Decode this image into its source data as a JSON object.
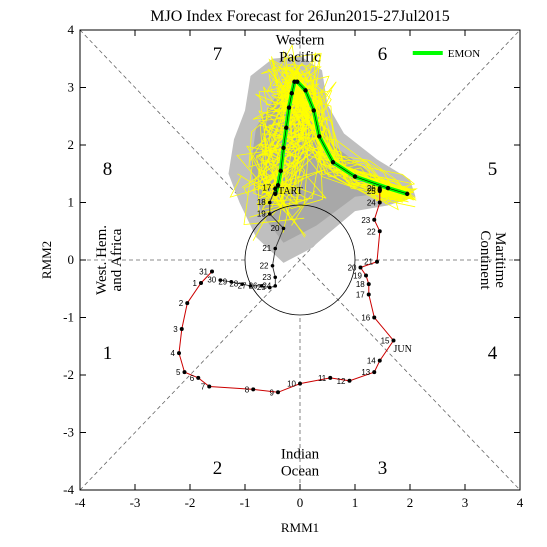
{
  "chart_data": {
    "type": "line",
    "title": "MJO Index Forecast for 26Jun2015-27Jul2015",
    "xlabel": "RMM1",
    "ylabel": "RMM2",
    "xlim": [
      -4,
      4
    ],
    "ylim": [
      -4,
      4
    ],
    "xticks": [
      "-4",
      "-3",
      "-2",
      "-1",
      "0",
      "1",
      "2",
      "3",
      "4"
    ],
    "yticks": [
      "-4",
      "-3",
      "-2",
      "-1",
      "0",
      "1",
      "2",
      "3",
      "4"
    ],
    "phases": [
      {
        "num": "1",
        "x": -3.5,
        "y": -1.6
      },
      {
        "num": "2",
        "x": -1.5,
        "y": -3.6
      },
      {
        "num": "3",
        "x": 1.5,
        "y": -3.6
      },
      {
        "num": "4",
        "x": 3.5,
        "y": -1.6
      },
      {
        "num": "5",
        "x": 3.5,
        "y": 1.6
      },
      {
        "num": "6",
        "x": 1.5,
        "y": 3.6
      },
      {
        "num": "7",
        "x": -1.5,
        "y": 3.6
      },
      {
        "num": "8",
        "x": -3.5,
        "y": 1.6
      }
    ],
    "regions": {
      "western_pacific": [
        "Western",
        "Pacific"
      ],
      "indian_ocean": [
        "Indian",
        "Ocean"
      ],
      "west_hem": [
        "West. Hem.",
        "and Africa"
      ],
      "maritime": [
        "Maritime",
        "Continent"
      ]
    },
    "legend": {
      "label": "EMON",
      "position": "top-right",
      "color": "#00ff00"
    },
    "colors": {
      "observed": "#cc0000",
      "ensemble": "#ffff00",
      "spread": "#bfbfbf",
      "guides": "#666666"
    },
    "month_labels": [
      {
        "text": "JUN",
        "x": 1.7,
        "y": -1.6
      },
      {
        "text": "START",
        "x": -0.5,
        "y": 1.15
      }
    ],
    "observed": [
      {
        "day": "31",
        "x": -1.6,
        "y": -0.2
      },
      {
        "day": "1",
        "x": -1.8,
        "y": -0.4
      },
      {
        "day": "2",
        "x": -2.05,
        "y": -0.75
      },
      {
        "day": "3",
        "x": -2.15,
        "y": -1.2
      },
      {
        "day": "4",
        "x": -2.2,
        "y": -1.62
      },
      {
        "day": "5",
        "x": -2.1,
        "y": -1.95
      },
      {
        "day": "6",
        "x": -1.85,
        "y": -2.05
      },
      {
        "day": "7",
        "x": -1.65,
        "y": -2.2
      },
      {
        "day": "8",
        "x": -0.85,
        "y": -2.25
      },
      {
        "day": "9",
        "x": -0.4,
        "y": -2.3
      },
      {
        "day": "10",
        "x": 0.0,
        "y": -2.15
      },
      {
        "day": "11",
        "x": 0.55,
        "y": -2.05
      },
      {
        "day": "12",
        "x": 0.9,
        "y": -2.1
      },
      {
        "day": "13",
        "x": 1.35,
        "y": -1.95
      },
      {
        "day": "14",
        "x": 1.45,
        "y": -1.75
      },
      {
        "day": "15",
        "x": 1.7,
        "y": -1.4
      },
      {
        "day": "16",
        "x": 1.35,
        "y": -1.0
      },
      {
        "day": "17",
        "x": 1.25,
        "y": -0.6
      },
      {
        "day": "18",
        "x": 1.25,
        "y": -0.42
      },
      {
        "day": "19",
        "x": 1.2,
        "y": -0.27
      },
      {
        "day": "20",
        "x": 1.1,
        "y": -0.13
      },
      {
        "day": "21",
        "x": 1.4,
        "y": -0.03
      },
      {
        "day": "22",
        "x": 1.45,
        "y": 0.5
      },
      {
        "day": "23",
        "x": 1.35,
        "y": 0.7
      },
      {
        "day": "24",
        "x": 1.45,
        "y": 1.0
      },
      {
        "day": "25",
        "x": 1.45,
        "y": 1.2
      },
      {
        "day": "26",
        "x": 1.45,
        "y": 1.25
      }
    ],
    "pre_period": [
      {
        "day": "20",
        "x": -0.3,
        "y": 0.55
      },
      {
        "day": "21",
        "x": -0.45,
        "y": 0.2
      },
      {
        "day": "22",
        "x": -0.5,
        "y": -0.1
      },
      {
        "day": "23",
        "x": -0.45,
        "y": -0.3
      },
      {
        "day": "24",
        "x": -0.45,
        "y": -0.45
      },
      {
        "day": "25",
        "x": -0.55,
        "y": -0.48
      },
      {
        "day": "26",
        "x": -0.7,
        "y": -0.45
      },
      {
        "day": "27",
        "x": -0.9,
        "y": -0.45
      },
      {
        "day": "28",
        "x": -1.05,
        "y": -0.42
      },
      {
        "day": "29",
        "x": -1.25,
        "y": -0.38
      },
      {
        "day": "30",
        "x": -1.45,
        "y": -0.35
      }
    ],
    "june_start": [
      {
        "day": "17",
        "x": -0.45,
        "y": 1.25
      },
      {
        "day": "18",
        "x": -0.55,
        "y": 1.0
      },
      {
        "day": "19",
        "x": -0.55,
        "y": 0.8
      }
    ],
    "ensemble_mean": [
      [
        1.45,
        1.22
      ],
      [
        1.95,
        1.15
      ],
      [
        1.6,
        1.25
      ],
      [
        1.0,
        1.45
      ],
      [
        0.6,
        1.7
      ],
      [
        0.35,
        2.15
      ],
      [
        0.25,
        2.6
      ],
      [
        0.1,
        2.95
      ],
      [
        -0.05,
        3.1
      ],
      [
        -0.1,
        3.1
      ],
      [
        -0.15,
        2.9
      ],
      [
        -0.2,
        2.65
      ],
      [
        -0.25,
        2.3
      ],
      [
        -0.3,
        1.95
      ],
      [
        -0.35,
        1.55
      ],
      [
        -0.4,
        1.3
      ],
      [
        -0.45,
        1.15
      ]
    ],
    "spread": [
      [
        -1.0,
        2.6
      ],
      [
        -0.9,
        3.2
      ],
      [
        -0.5,
        3.5
      ],
      [
        0.0,
        3.55
      ],
      [
        0.4,
        3.3
      ],
      [
        0.5,
        2.7
      ],
      [
        0.8,
        2.2
      ],
      [
        1.4,
        1.75
      ],
      [
        2.0,
        1.4
      ],
      [
        2.1,
        1.1
      ],
      [
        1.6,
        0.95
      ],
      [
        1.0,
        0.85
      ],
      [
        0.5,
        0.45
      ],
      [
        0.2,
        0.2
      ],
      [
        -0.3,
        -0.05
      ],
      [
        -0.8,
        0.4
      ],
      [
        -1.1,
        1.0
      ],
      [
        -1.3,
        1.5
      ],
      [
        -1.2,
        2.1
      ]
    ],
    "spread_inner": [
      [
        -0.4,
        2.9
      ],
      [
        0.2,
        3.0
      ],
      [
        0.6,
        2.0
      ],
      [
        1.3,
        1.5
      ],
      [
        1.8,
        1.2
      ],
      [
        1.0,
        1.1
      ],
      [
        0.3,
        0.6
      ],
      [
        -0.3,
        0.3
      ],
      [
        -0.7,
        0.8
      ],
      [
        -0.9,
        1.6
      ],
      [
        -0.8,
        2.3
      ]
    ]
  }
}
